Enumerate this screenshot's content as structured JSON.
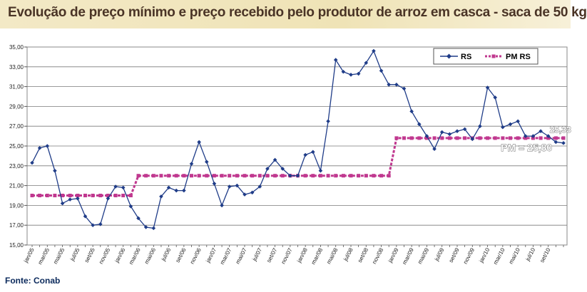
{
  "header": {
    "title": "Evolução de preço mínimo e preço recebido pelo produtor de arroz em casca - saca de 50 kg"
  },
  "footer": {
    "source": "Fonte: Conab"
  },
  "chart_data": {
    "type": "line",
    "title": "Evolução de preço mínimo e preço recebido pelo produtor de arroz em casca - saca de 50 kg",
    "xlabel": "",
    "ylabel": "",
    "ylim": [
      15,
      35
    ],
    "yticks": [
      "15,00",
      "17,00",
      "19,00",
      "21,00",
      "23,00",
      "25,00",
      "27,00",
      "29,00",
      "31,00",
      "33,00",
      "35,00"
    ],
    "grid": true,
    "legend_position": "top-right",
    "tick_labels": [
      "jan/05",
      "mar/05",
      "mai/05",
      "jul/05",
      "set/05",
      "nov/05",
      "jan/06",
      "mar/06",
      "mai/06",
      "jul/06",
      "set/06",
      "nov/06",
      "jan/07",
      "mar/07",
      "mai/07",
      "jul/07",
      "set/07",
      "nov/07",
      "jan/08",
      "mar/08",
      "mai/08",
      "jul/08",
      "set/08",
      "nov/08",
      "jan/09",
      "mar/09",
      "mai/09",
      "jul/09",
      "set/09",
      "nov/09",
      "jan/10",
      "mar/10",
      "mai/10",
      "jul/10",
      "set/10"
    ],
    "categories": [
      "jan/05",
      "fev/05",
      "mar/05",
      "abr/05",
      "mai/05",
      "jun/05",
      "jul/05",
      "ago/05",
      "set/05",
      "out/05",
      "nov/05",
      "dez/05",
      "jan/06",
      "fev/06",
      "mar/06",
      "abr/06",
      "mai/06",
      "jun/06",
      "jul/06",
      "ago/06",
      "set/06",
      "out/06",
      "nov/06",
      "dez/06",
      "jan/07",
      "fev/07",
      "mar/07",
      "abr/07",
      "mai/07",
      "jun/07",
      "jul/07",
      "ago/07",
      "set/07",
      "out/07",
      "nov/07",
      "dez/07",
      "jan/08",
      "fev/08",
      "mar/08",
      "abr/08",
      "mai/08",
      "jun/08",
      "jul/08",
      "ago/08",
      "set/08",
      "out/08",
      "nov/08",
      "dez/08",
      "jan/09",
      "fev/09",
      "mar/09",
      "abr/09",
      "mai/09",
      "jun/09",
      "jul/09",
      "ago/09",
      "set/09",
      "out/09",
      "nov/09",
      "dez/09",
      "jan/10",
      "fev/10",
      "mar/10",
      "abr/10",
      "mai/10",
      "jun/10",
      "jul/10",
      "ago/10",
      "set/10",
      "out/10",
      "nov/10"
    ],
    "series": [
      {
        "name": "RS",
        "color": "#1f3c88",
        "marker": "diamond",
        "values": [
          23.3,
          24.8,
          25.0,
          22.5,
          19.2,
          19.6,
          19.7,
          17.9,
          17.0,
          17.1,
          19.7,
          20.9,
          20.8,
          18.9,
          17.7,
          16.8,
          16.7,
          19.9,
          20.8,
          20.5,
          20.5,
          23.2,
          25.4,
          23.4,
          21.2,
          19.0,
          20.9,
          21.0,
          20.1,
          20.3,
          20.9,
          22.7,
          23.6,
          22.7,
          22.0,
          22.0,
          24.1,
          24.4,
          22.5,
          27.5,
          33.7,
          32.5,
          32.2,
          32.3,
          33.4,
          34.6,
          32.6,
          31.2,
          31.2,
          30.8,
          28.5,
          27.2,
          26.0,
          24.7,
          26.4,
          26.2,
          26.5,
          26.7,
          25.7,
          27.0,
          30.9,
          29.9,
          26.9,
          27.2,
          27.5,
          26.0,
          26.0,
          26.5,
          26.0,
          25.4,
          25.3
        ]
      },
      {
        "name": "PM RS",
        "color": "#c0388f",
        "marker": "square",
        "values": [
          20.0,
          20.0,
          20.0,
          20.0,
          20.0,
          20.0,
          20.0,
          20.0,
          20.0,
          20.0,
          20.0,
          20.0,
          20.0,
          20.0,
          22.0,
          22.0,
          22.0,
          22.0,
          22.0,
          22.0,
          22.0,
          22.0,
          22.0,
          22.0,
          22.0,
          22.0,
          22.0,
          22.0,
          22.0,
          22.0,
          22.0,
          22.0,
          22.0,
          22.0,
          22.0,
          22.0,
          22.0,
          22.0,
          22.0,
          22.0,
          22.0,
          22.0,
          22.0,
          22.0,
          22.0,
          22.0,
          22.0,
          22.0,
          25.8,
          25.8,
          25.8,
          25.8,
          25.8,
          25.8,
          25.8,
          25.8,
          25.8,
          25.8,
          25.8,
          25.8,
          25.8,
          25.8,
          25.8,
          25.8,
          25.8,
          25.8,
          25.8,
          25.8,
          25.8,
          25.8,
          25.8
        ]
      }
    ],
    "annotations": [
      {
        "text": "25,33",
        "series": "RS",
        "index": 68
      },
      {
        "text": "PM = 25,80",
        "series": "PM RS",
        "index": 61
      }
    ]
  }
}
